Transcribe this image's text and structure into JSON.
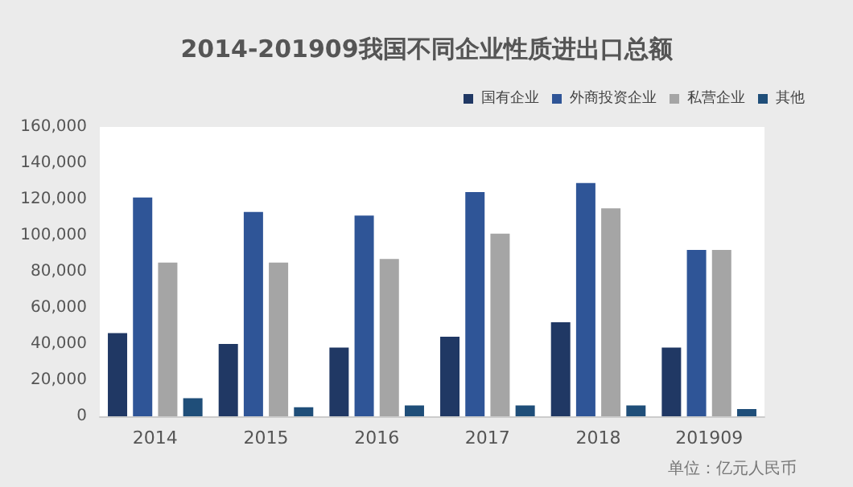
{
  "chart_data": {
    "type": "bar",
    "title": "2014-201909我国不同企业性质进出口总额",
    "categories": [
      "2014",
      "2015",
      "2016",
      "2017",
      "2018",
      "201909"
    ],
    "series": [
      {
        "name": "国有企业",
        "color": "#203864",
        "values": [
          46000,
          40000,
          38000,
          44000,
          52000,
          38000
        ]
      },
      {
        "name": "外商投资企业",
        "color": "#2f5597",
        "values": [
          121000,
          113000,
          111000,
          124000,
          129000,
          92000
        ]
      },
      {
        "name": "私营企业",
        "color": "#a5a5a5",
        "values": [
          85000,
          85000,
          87000,
          101000,
          115000,
          92000
        ]
      },
      {
        "name": "其他",
        "color": "#1f4e79",
        "values": [
          10000,
          5000,
          6000,
          6000,
          6000,
          4000
        ]
      }
    ],
    "ylim": [
      0,
      160000
    ],
    "yticks": [
      0,
      {
        "value": 20000,
        "label": "20,000"
      },
      {
        "value": 40000,
        "label": "40,000"
      },
      {
        "value": 60000,
        "label": "60,000"
      },
      {
        "value": 80000,
        "label": "80,000"
      },
      {
        "value": 100000,
        "label": "100,000"
      },
      {
        "value": 120000,
        "label": "120,000"
      },
      {
        "value": 140000,
        "label": "140,000"
      },
      {
        "value": 160000,
        "label": "160,000"
      }
    ],
    "grid": false,
    "legend": "top right",
    "annotations": [
      "单位：亿元人民币"
    ]
  }
}
